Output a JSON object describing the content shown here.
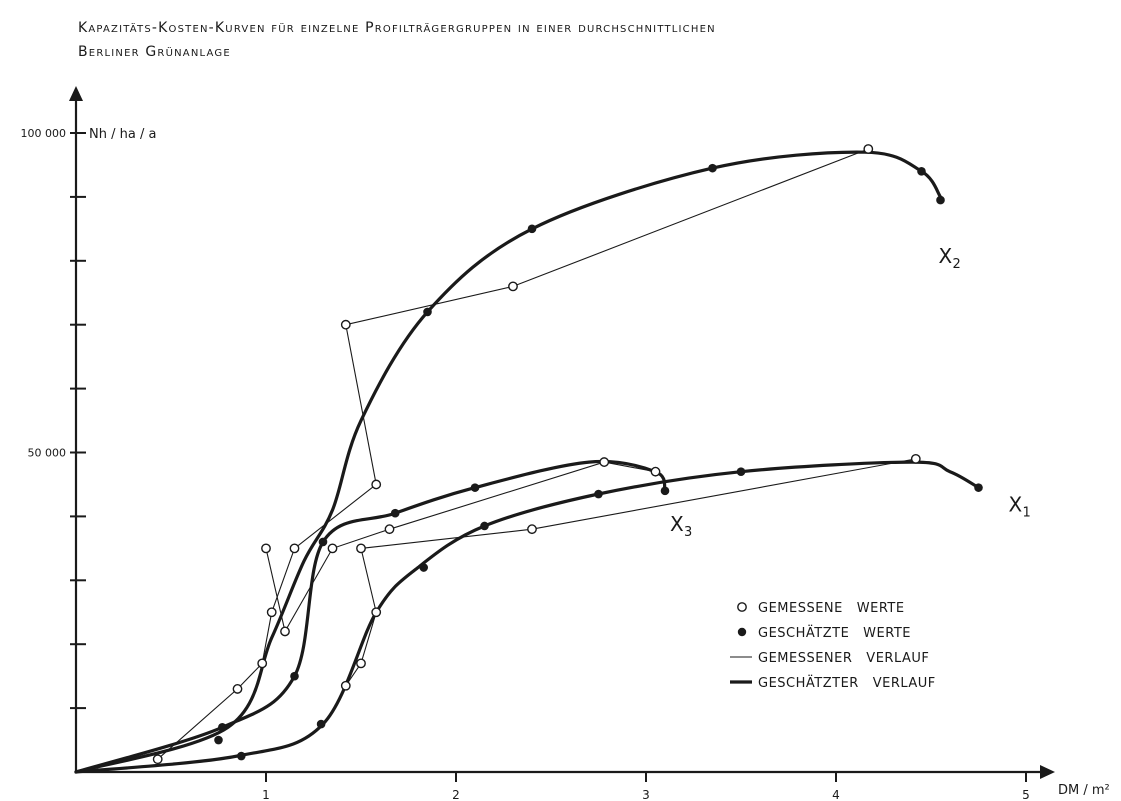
{
  "chart_data": {
    "type": "line",
    "title_lines": [
      "Kapazitäts-Kosten-Kurven für einzelne Profilträgergruppen in einer durchschnittlichen",
      "Berliner Grünanlage"
    ],
    "xlabel": "DM / m²",
    "ylabel": "Nh / ha / a",
    "xlim": [
      0,
      5
    ],
    "ylim": [
      0,
      100000
    ],
    "x_ticks": [
      1,
      2,
      3,
      4,
      5
    ],
    "y_ticks": [
      10000,
      20000,
      30000,
      40000,
      50000,
      60000,
      70000,
      80000,
      90000,
      100000
    ],
    "y_tick_labels": [
      {
        "value": 50000,
        "label": "50 000"
      },
      {
        "value": 100000,
        "label": "100 000"
      }
    ],
    "grid": false,
    "legend_position": "bottom-right",
    "legend": [
      {
        "label": "GEMESSENE   WERTE",
        "symbol": "open-circle"
      },
      {
        "label": "GESCHÄTZTE   WERTE",
        "symbol": "filled-circle"
      },
      {
        "label": "GEMESSENER   VERLAUF",
        "symbol": "thin-line"
      },
      {
        "label": "GESCHÄTZTER   VERLAUF",
        "symbol": "thick-line"
      }
    ],
    "series": [
      {
        "name": "X2",
        "end_label": {
          "main": "X",
          "sub": "2"
        },
        "estimated_points": [
          [
            0.0,
            0
          ],
          [
            0.8,
            7000
          ],
          [
            1.03,
            21000
          ],
          [
            1.2,
            33000
          ],
          [
            1.35,
            41000
          ],
          [
            1.5,
            55000
          ],
          [
            1.85,
            72000
          ],
          [
            2.4,
            85000
          ],
          [
            3.35,
            94500
          ],
          [
            4.15,
            97000
          ],
          [
            4.45,
            94000
          ],
          [
            4.55,
            90000
          ]
        ],
        "estimated_markers": [
          [
            0.75,
            5000
          ],
          [
            1.85,
            72000
          ],
          [
            2.4,
            85000
          ],
          [
            3.35,
            94500
          ],
          [
            4.45,
            94000
          ],
          [
            4.55,
            89500
          ]
        ],
        "measured_points": [
          [
            0.43,
            2000
          ],
          [
            0.85,
            13000
          ],
          [
            0.98,
            17000
          ],
          [
            1.03,
            25000
          ],
          [
            1.15,
            35000
          ],
          [
            1.58,
            45000
          ],
          [
            1.42,
            70000
          ],
          [
            2.3,
            76000
          ],
          [
            4.17,
            97500
          ]
        ]
      },
      {
        "name": "X3",
        "end_label": {
          "main": "X",
          "sub": "3"
        },
        "estimated_points": [
          [
            0.0,
            0
          ],
          [
            0.77,
            7000
          ],
          [
            1.15,
            15000
          ],
          [
            1.3,
            36000
          ],
          [
            1.68,
            40500
          ],
          [
            2.1,
            44500
          ],
          [
            2.7,
            48500
          ],
          [
            3.05,
            47000
          ],
          [
            3.1,
            44000
          ]
        ],
        "estimated_markers": [
          [
            0.77,
            7000
          ],
          [
            1.15,
            15000
          ],
          [
            1.3,
            36000
          ],
          [
            1.68,
            40500
          ],
          [
            2.1,
            44500
          ],
          [
            3.05,
            47000
          ],
          [
            3.1,
            44000
          ]
        ],
        "measured_points": [
          [
            1.0,
            35000
          ],
          [
            1.1,
            22000
          ],
          [
            1.35,
            35000
          ],
          [
            1.65,
            38000
          ],
          [
            2.78,
            48500
          ],
          [
            3.05,
            47000
          ]
        ]
      },
      {
        "name": "X1",
        "end_label": {
          "main": "X",
          "sub": "1"
        },
        "estimated_points": [
          [
            0.0,
            0
          ],
          [
            0.85,
            2500
          ],
          [
            1.3,
            7500
          ],
          [
            1.58,
            25000
          ],
          [
            1.8,
            32000
          ],
          [
            2.15,
            38500
          ],
          [
            2.75,
            43500
          ],
          [
            3.5,
            47000
          ],
          [
            4.4,
            48500
          ],
          [
            4.6,
            47000
          ],
          [
            4.75,
            44500
          ]
        ],
        "estimated_markers": [
          [
            0.87,
            2500
          ],
          [
            1.29,
            7500
          ],
          [
            1.83,
            32000
          ],
          [
            2.15,
            38500
          ],
          [
            2.75,
            43500
          ],
          [
            3.5,
            47000
          ],
          [
            4.75,
            44500
          ]
        ],
        "measured_points": [
          [
            1.42,
            13500
          ],
          [
            1.5,
            17000
          ],
          [
            1.58,
            25000
          ],
          [
            1.5,
            35000
          ],
          [
            2.4,
            38000
          ],
          [
            4.42,
            49000
          ]
        ]
      }
    ]
  }
}
